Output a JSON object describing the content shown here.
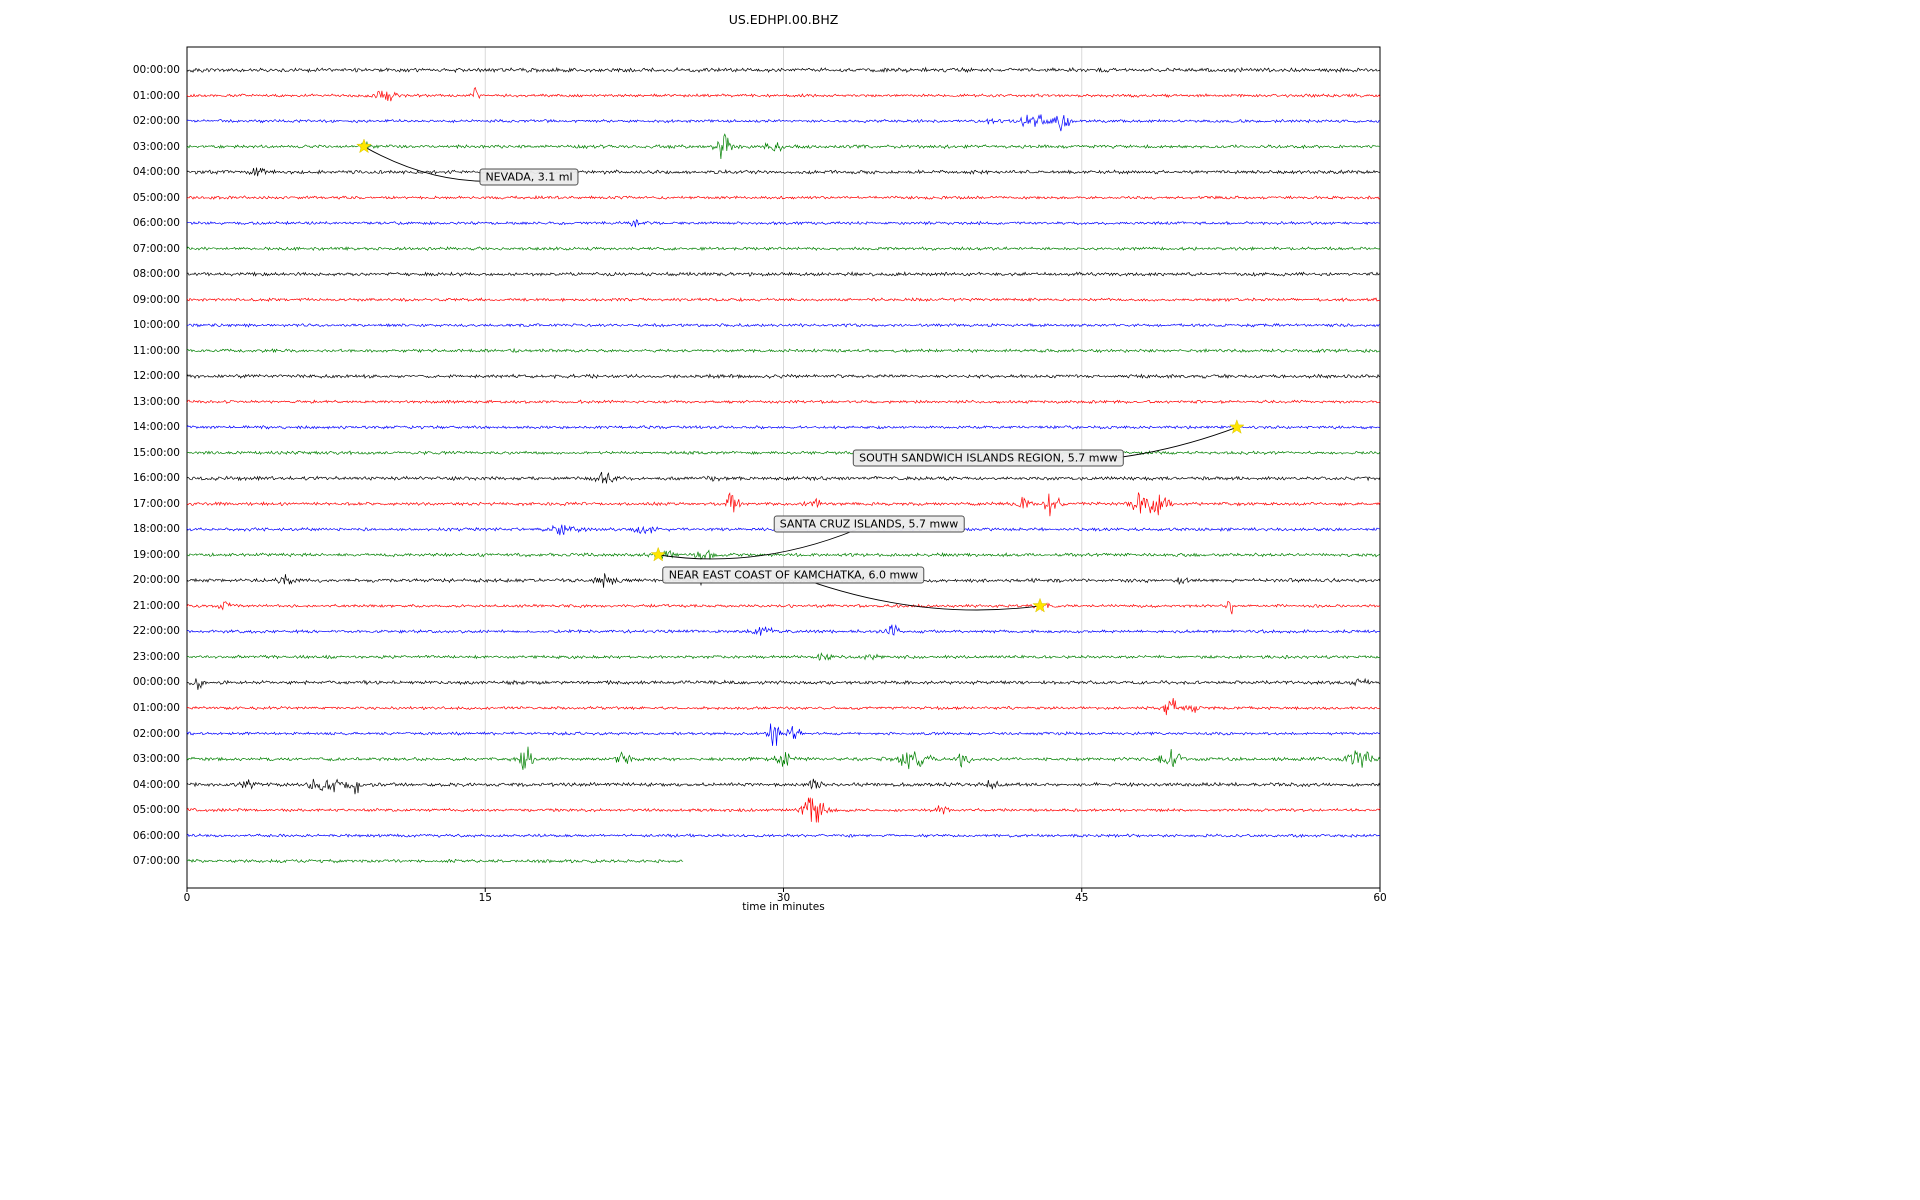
{
  "chart_data": {
    "type": "line",
    "title": "US.EDHPI.00.BHZ",
    "xlabel": "time in minutes",
    "xlim": [
      0,
      60
    ],
    "x_ticks": [
      0,
      15,
      30,
      45,
      60
    ],
    "grid": "vertical",
    "trace_color_cycle": [
      "#000000",
      "#ff0000",
      "#0000ff",
      "#008000"
    ],
    "event_marker_color": "#ffe600",
    "rows": [
      {
        "label": "00:00:00",
        "color": "#000000",
        "amp": 2.3,
        "bursts": []
      },
      {
        "label": "01:00:00",
        "color": "#ff0000",
        "amp": 1.7,
        "bursts": [
          [
            10,
            5,
            0.5
          ],
          [
            14.5,
            9,
            0.15
          ]
        ]
      },
      {
        "label": "02:00:00",
        "color": "#0000ff",
        "amp": 1.7,
        "bursts": [
          [
            40.5,
            3,
            0.3
          ],
          [
            42.5,
            5,
            0.7
          ],
          [
            44,
            6,
            0.4
          ]
        ]
      },
      {
        "label": "03:00:00",
        "color": "#008000",
        "amp": 1.9,
        "bursts": [
          [
            9,
            2.5,
            0.3
          ],
          [
            27,
            12,
            0.35
          ],
          [
            29.5,
            7,
            0.3
          ]
        ]
      },
      {
        "label": "04:00:00",
        "color": "#000000",
        "amp": 2.1,
        "bursts": [
          [
            3.5,
            3,
            0.3
          ]
        ]
      },
      {
        "label": "05:00:00",
        "color": "#ff0000",
        "amp": 1.7,
        "bursts": []
      },
      {
        "label": "06:00:00",
        "color": "#0000ff",
        "amp": 1.7,
        "bursts": [
          [
            22.5,
            2.5,
            0.2
          ]
        ]
      },
      {
        "label": "07:00:00",
        "color": "#008000",
        "amp": 1.8,
        "bursts": []
      },
      {
        "label": "08:00:00",
        "color": "#000000",
        "amp": 2.0,
        "bursts": []
      },
      {
        "label": "09:00:00",
        "color": "#ff0000",
        "amp": 1.7,
        "bursts": []
      },
      {
        "label": "10:00:00",
        "color": "#0000ff",
        "amp": 1.7,
        "bursts": []
      },
      {
        "label": "11:00:00",
        "color": "#008000",
        "amp": 1.8,
        "bursts": []
      },
      {
        "label": "12:00:00",
        "color": "#000000",
        "amp": 2.0,
        "bursts": []
      },
      {
        "label": "13:00:00",
        "color": "#ff0000",
        "amp": 1.7,
        "bursts": []
      },
      {
        "label": "14:00:00",
        "color": "#0000ff",
        "amp": 1.7,
        "bursts": []
      },
      {
        "label": "15:00:00",
        "color": "#008000",
        "amp": 1.8,
        "bursts": []
      },
      {
        "label": "16:00:00",
        "color": "#000000",
        "amp": 2.1,
        "bursts": [
          [
            21,
            3,
            0.4
          ],
          [
            26.5,
            2.5,
            0.3
          ]
        ]
      },
      {
        "label": "17:00:00",
        "color": "#ff0000",
        "amp": 1.8,
        "bursts": [
          [
            27.5,
            10,
            0.3
          ],
          [
            31.5,
            5,
            0.3
          ],
          [
            42,
            8,
            0.3
          ],
          [
            43.5,
            7,
            0.4
          ],
          [
            48,
            8,
            0.5
          ],
          [
            49,
            7,
            0.4
          ]
        ]
      },
      {
        "label": "18:00:00",
        "color": "#0000ff",
        "amp": 1.8,
        "bursts": [
          [
            19,
            3,
            0.8
          ],
          [
            23,
            2.5,
            0.5
          ]
        ]
      },
      {
        "label": "19:00:00",
        "color": "#008000",
        "amp": 1.9,
        "bursts": [
          [
            24,
            3.5,
            0.5
          ],
          [
            26,
            2.5,
            0.5
          ]
        ]
      },
      {
        "label": "20:00:00",
        "color": "#000000",
        "amp": 2.1,
        "bursts": [
          [
            5,
            3,
            0.3
          ],
          [
            21,
            3,
            0.5
          ],
          [
            26,
            2.5,
            0.3
          ],
          [
            50,
            2.5,
            0.4
          ]
        ]
      },
      {
        "label": "21:00:00",
        "color": "#ff0000",
        "amp": 1.7,
        "bursts": [
          [
            2,
            3,
            0.3
          ],
          [
            43,
            2.5,
            0.3
          ],
          [
            52.5,
            5,
            0.2
          ]
        ]
      },
      {
        "label": "22:00:00",
        "color": "#0000ff",
        "amp": 1.8,
        "bursts": [
          [
            29,
            3,
            0.4
          ],
          [
            35.5,
            4,
            0.3
          ]
        ]
      },
      {
        "label": "23:00:00",
        "color": "#008000",
        "amp": 1.8,
        "bursts": [
          [
            32,
            3,
            0.3
          ],
          [
            34.5,
            2.5,
            0.3
          ]
        ]
      },
      {
        "label": "00:00:00",
        "color": "#000000",
        "amp": 2.0,
        "bursts": [
          [
            0.5,
            4,
            0.3
          ],
          [
            59,
            3,
            0.3
          ]
        ]
      },
      {
        "label": "01:00:00",
        "color": "#ff0000",
        "amp": 1.7,
        "bursts": [
          [
            49.5,
            7,
            0.4
          ],
          [
            50.5,
            4,
            0.3
          ]
        ]
      },
      {
        "label": "02:00:00",
        "color": "#0000ff",
        "amp": 1.7,
        "bursts": [
          [
            29.5,
            16,
            0.25
          ],
          [
            30.5,
            6,
            0.3
          ]
        ]
      },
      {
        "label": "03:00:00",
        "color": "#008000",
        "amp": 1.9,
        "bursts": [
          [
            17,
            8,
            0.4
          ],
          [
            22,
            5,
            0.4
          ],
          [
            30,
            4,
            0.4
          ],
          [
            36.5,
            6,
            0.8
          ],
          [
            39,
            4,
            0.4
          ],
          [
            49.5,
            5,
            0.5
          ],
          [
            59,
            7,
            0.5
          ]
        ]
      },
      {
        "label": "04:00:00",
        "color": "#000000",
        "amp": 2.1,
        "bursts": [
          [
            3,
            2.5,
            0.3
          ],
          [
            7,
            5,
            0.7
          ],
          [
            8.5,
            4,
            0.4
          ],
          [
            31.5,
            3,
            0.3
          ],
          [
            40.5,
            2.5,
            0.3
          ]
        ]
      },
      {
        "label": "05:00:00",
        "color": "#ff0000",
        "amp": 1.7,
        "bursts": [
          [
            31.5,
            12,
            0.5
          ],
          [
            38,
            3,
            0.3
          ]
        ]
      },
      {
        "label": "06:00:00",
        "color": "#0000ff",
        "amp": 1.7,
        "bursts": []
      },
      {
        "label": "07:00:00",
        "color": "#008000",
        "amp": 1.8,
        "bursts": [],
        "end": 25
      }
    ],
    "events": [
      {
        "label": "NEVADA, 3.1 ml",
        "row": 3,
        "minute": 8.9,
        "box_row": 4.2,
        "box_minute": 17.2
      },
      {
        "label": "SOUTH SANDWICH ISLANDS REGION, 5.7 mww",
        "row": 14,
        "minute": 52.8,
        "box_row": 15.2,
        "box_minute": 40.3
      },
      {
        "label": "SANTA CRUZ ISLANDS, 5.7 mww",
        "row": 19,
        "minute": 23.7,
        "box_row": 17.8,
        "box_minute": 34.3
      },
      {
        "label": "NEAR EAST COAST OF KAMCHATKA, 6.0 mww",
        "row": 21,
        "minute": 42.9,
        "box_row": 19.8,
        "box_minute": 30.5
      }
    ]
  }
}
